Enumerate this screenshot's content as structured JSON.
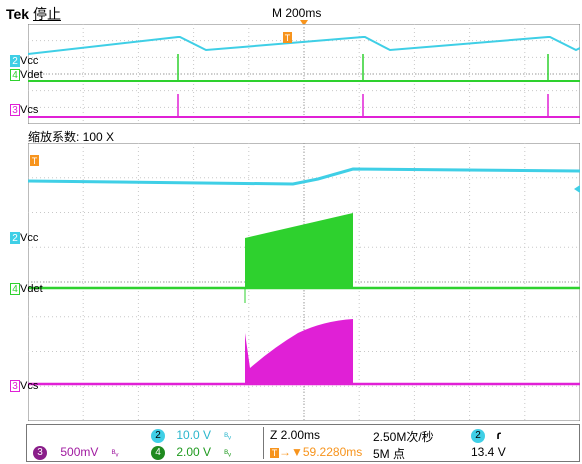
{
  "header": {
    "brand": "Tek",
    "run_state": "停止",
    "timebase": "M 200ms",
    "trigger_marker": "T"
  },
  "zoom": {
    "label": "缩放系数: 100 X"
  },
  "channels": {
    "ch2": {
      "badge": "2",
      "name": "Vcc",
      "color": "#3fcfe6"
    },
    "ch4": {
      "badge": "4",
      "name": "Vdet",
      "color": "#2ed12e"
    },
    "ch3": {
      "badge": "3",
      "name": "Vcs",
      "color": "#e020d6"
    }
  },
  "status": {
    "ch3_scale": "500mV",
    "ch2_scale": "10.0 V",
    "ch4_scale": "2.00 V",
    "bw_symbol": "ᴮᵥ",
    "zoom_time": "Z 2.00ms",
    "trigger_pos": "→▼59.2280ms",
    "sample_rate": "2.50M次/秒",
    "record_length": "5M 点",
    "trig_channel": "2",
    "trig_slope": "ɾ",
    "trig_level": "13.4 V"
  }
}
